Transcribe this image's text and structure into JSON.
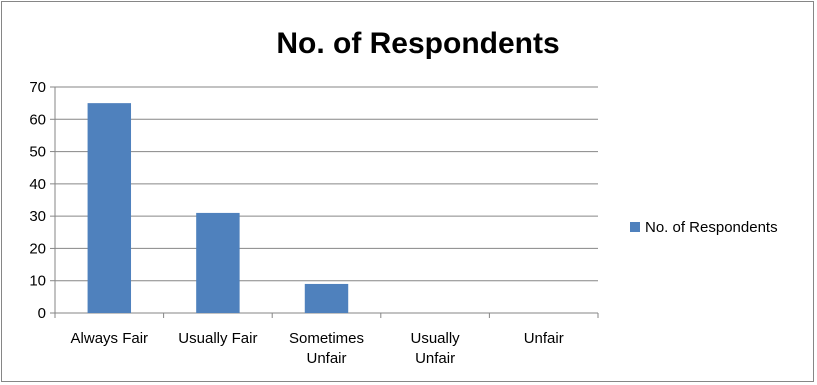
{
  "chart_data": {
    "type": "bar",
    "title": "No. of Respondents",
    "categories": [
      [
        "Always Fair"
      ],
      [
        "Usually Fair"
      ],
      [
        "Sometimes",
        "Unfair"
      ],
      [
        "Usually",
        "Unfair"
      ],
      [
        "Unfair"
      ]
    ],
    "series": [
      {
        "name": "No. of Respondents",
        "values": [
          65,
          31,
          9,
          0,
          0
        ],
        "color": "#4f81bd"
      }
    ],
    "yticks": [
      "0",
      "10",
      "20",
      "30",
      "40",
      "50",
      "60",
      "70"
    ],
    "ylim": [
      0,
      70
    ],
    "grid": true,
    "legend_position": "right"
  }
}
